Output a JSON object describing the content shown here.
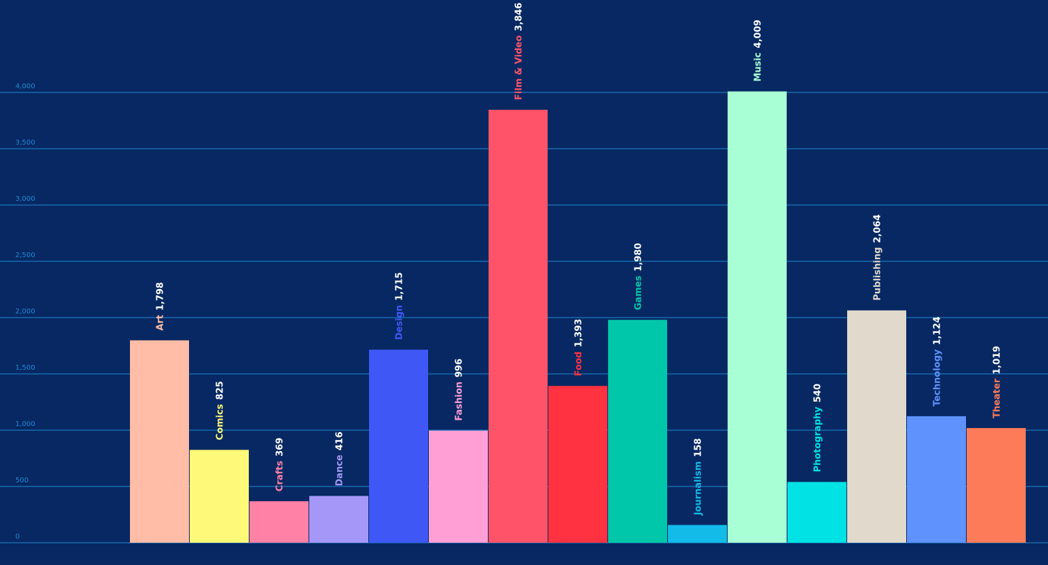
{
  "chart_data": {
    "type": "bar",
    "title": "",
    "xlabel": "",
    "ylabel": "",
    "ylim": [
      0,
      4000
    ],
    "yticks": [
      0,
      500,
      1000,
      1500,
      2000,
      2500,
      3000,
      3500,
      4000
    ],
    "ytick_labels": [
      "0",
      "500",
      "1,000",
      "1,500",
      "2,000",
      "2,500",
      "3,000",
      "3,500",
      "4,000"
    ],
    "grid": true,
    "legend": "none",
    "categories": [
      "Art",
      "Comics",
      "Crafts",
      "Dance",
      "Design",
      "Fashion",
      "Film & Video",
      "Food",
      "Games",
      "Journalism",
      "Music",
      "Photography",
      "Publishing",
      "Technology",
      "Theater"
    ],
    "values": [
      1798,
      825,
      369,
      416,
      1715,
      996,
      3846,
      1393,
      1980,
      158,
      4009,
      540,
      2064,
      1124,
      1019
    ],
    "value_labels": [
      "1,798",
      "825",
      "369",
      "416",
      "1,715",
      "996",
      "3,846",
      "1,393",
      "1,980",
      "158",
      "4,009",
      "540",
      "2,064",
      "1,124",
      "1,019"
    ],
    "colors": [
      "#ffbca6",
      "#fef979",
      "#ff81a5",
      "#a597f8",
      "#3f58f5",
      "#ff9fd6",
      "#ff5369",
      "#ff3241",
      "#00c7a9",
      "#12bbe8",
      "#a9ffd5",
      "#00e2e4",
      "#e0d9cc",
      "#5f92fd",
      "#fd7b59"
    ],
    "colors_meta": {
      "background": "#072862",
      "grid": "#1f8ad6",
      "tick_text": "#1f8ad6",
      "value_text": "#ffffff"
    }
  }
}
